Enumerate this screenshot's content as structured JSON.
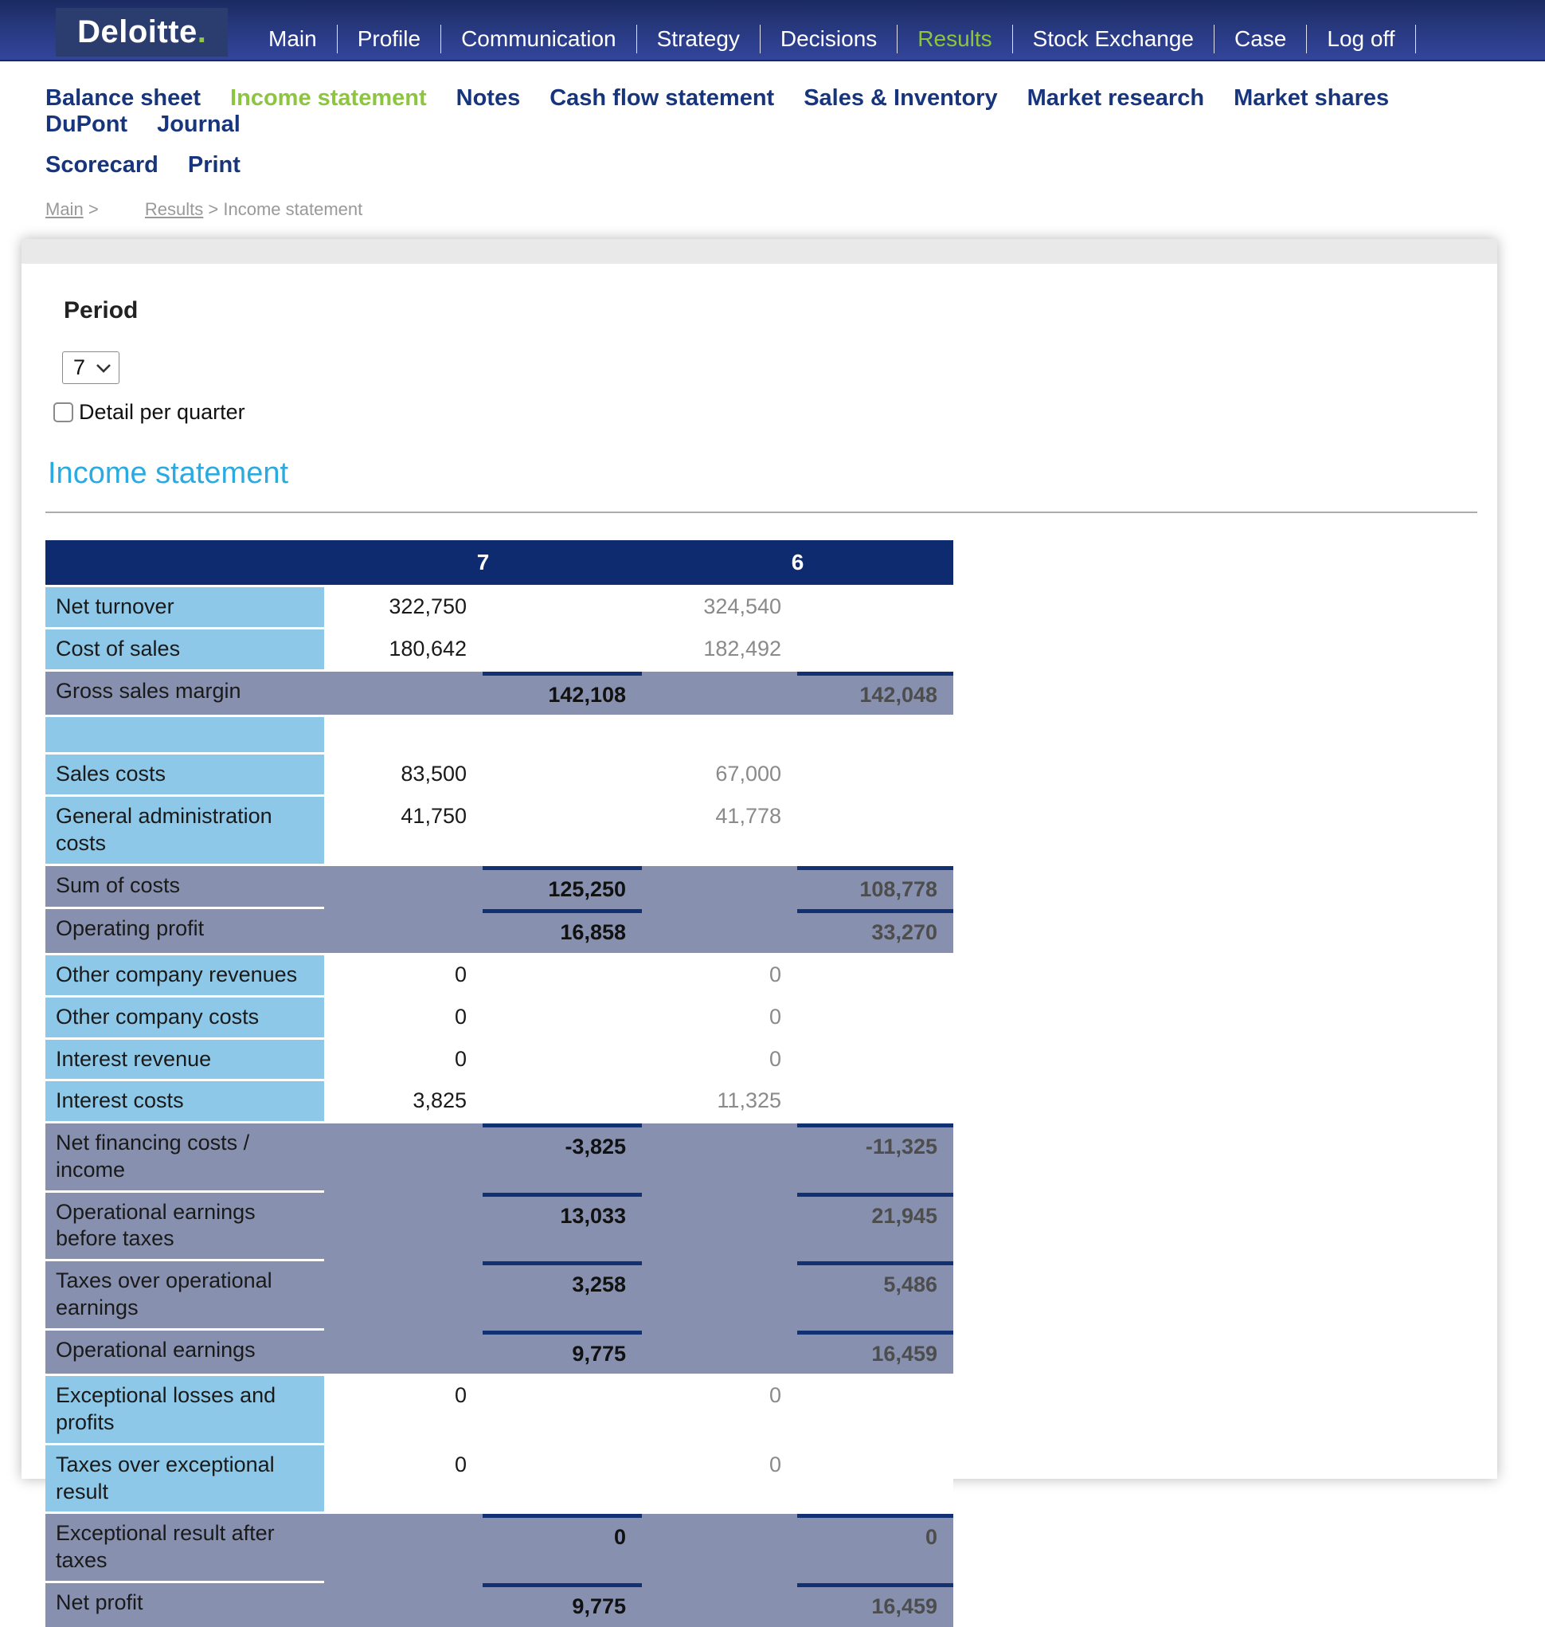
{
  "topnav": {
    "logo_text": "Deloitte",
    "logo_dot": ".",
    "items": [
      {
        "label": "Main",
        "active": false
      },
      {
        "label": "Profile",
        "active": false
      },
      {
        "label": "Communication",
        "active": false
      },
      {
        "label": "Strategy",
        "active": false
      },
      {
        "label": "Decisions",
        "active": false
      },
      {
        "label": "Results",
        "active": true
      },
      {
        "label": "Stock Exchange",
        "active": false
      },
      {
        "label": "Case",
        "active": false
      },
      {
        "label": "Log off",
        "active": false
      }
    ]
  },
  "subnav": {
    "row1": [
      {
        "label": "Balance sheet",
        "active": false
      },
      {
        "label": "Income statement",
        "active": true
      },
      {
        "label": "Notes",
        "active": false
      },
      {
        "label": "Cash flow statement",
        "active": false
      },
      {
        "label": "Sales & Inventory",
        "active": false
      },
      {
        "label": "Market research",
        "active": false
      },
      {
        "label": "Market shares",
        "active": false
      },
      {
        "label": "DuPont",
        "active": false
      },
      {
        "label": "Journal",
        "active": false
      }
    ],
    "row2": [
      {
        "label": "Scorecard",
        "active": false
      },
      {
        "label": "Print",
        "active": false
      }
    ]
  },
  "breadcrumb": {
    "link1": "Main",
    "sep1": ">",
    "link2": "Results",
    "sep2": ">",
    "current": "Income statement"
  },
  "period": {
    "heading": "Period",
    "selected": "7",
    "checkbox_label": "Detail per quarter",
    "checked": false
  },
  "page": {
    "title": "Income statement"
  },
  "table": {
    "columns": [
      "7",
      "6"
    ],
    "rows": [
      {
        "type": "detail",
        "label": "Net turnover",
        "v7": "322,750",
        "v6": "324,540",
        "tall": false,
        "label_sep": false
      },
      {
        "type": "detail",
        "label": "Cost of sales",
        "v7": "180,642",
        "v6": "182,492",
        "tall": false,
        "label_sep": false
      },
      {
        "type": "subtotal",
        "label": "Gross sales margin",
        "v7": "142,108",
        "v6": "142,048",
        "tall": false,
        "label_sep": false
      },
      {
        "type": "blank",
        "label": "",
        "v7": "",
        "v6": "",
        "tall": false,
        "label_sep": false
      },
      {
        "type": "detail",
        "label": "Sales costs",
        "v7": "83,500",
        "v6": "67,000",
        "tall": false,
        "label_sep": false
      },
      {
        "type": "detail",
        "label": "General administration costs",
        "v7": "41,750",
        "v6": "41,778",
        "tall": true,
        "label_sep": false
      },
      {
        "type": "subtotal",
        "label": "Sum of costs",
        "v7": "125,250",
        "v6": "108,778",
        "tall": false,
        "label_sep": true
      },
      {
        "type": "subtotal",
        "label": "Operating profit",
        "v7": "16,858",
        "v6": "33,270",
        "tall": false,
        "label_sep": false
      },
      {
        "type": "detail",
        "label": "Other company revenues",
        "v7": "0",
        "v6": "0",
        "tall": false,
        "label_sep": false
      },
      {
        "type": "detail",
        "label": "Other company costs",
        "v7": "0",
        "v6": "0",
        "tall": false,
        "label_sep": false
      },
      {
        "type": "detail",
        "label": "Interest revenue",
        "v7": "0",
        "v6": "0",
        "tall": false,
        "label_sep": false
      },
      {
        "type": "detail",
        "label": "Interest costs",
        "v7": "3,825",
        "v6": "11,325",
        "tall": false,
        "label_sep": false
      },
      {
        "type": "subtotal",
        "label": "Net financing costs / income",
        "v7": "-3,825",
        "v6": "-11,325",
        "tall": false,
        "label_sep": true
      },
      {
        "type": "subtotal",
        "label": "Operational earnings before taxes",
        "v7": "13,033",
        "v6": "21,945",
        "tall": true,
        "label_sep": true
      },
      {
        "type": "subtotal",
        "label": "Taxes over operational earnings",
        "v7": "3,258",
        "v6": "5,486",
        "tall": true,
        "label_sep": true
      },
      {
        "type": "subtotal",
        "label": "Operational earnings",
        "v7": "9,775",
        "v6": "16,459",
        "tall": false,
        "label_sep": false
      },
      {
        "type": "detail",
        "label": "Exceptional losses and profits",
        "v7": "0",
        "v6": "0",
        "tall": true,
        "label_sep": false
      },
      {
        "type": "detail",
        "label": "Taxes over exceptional result",
        "v7": "0",
        "v6": "0",
        "tall": true,
        "label_sep": false
      },
      {
        "type": "subtotal",
        "label": "Exceptional result after taxes",
        "v7": "0",
        "v6": "0",
        "tall": true,
        "label_sep": true
      },
      {
        "type": "subtotal",
        "label": "Net profit",
        "v7": "9,775",
        "v6": "16,459",
        "tall": false,
        "label_sep": false
      }
    ]
  },
  "colors": {
    "nav_gradient_top": "#1b2a61",
    "nav_gradient_bottom": "#32459a",
    "accent_green": "#8cc63e",
    "logo_green": "#92c83e",
    "subnav_navy": "#17357c",
    "heading_blue": "#29abe2",
    "table_header_navy": "#0d2b6e",
    "sum_line_navy": "#123173",
    "label_light_blue": "#8dc8e8",
    "subtotal_gray_blue": "#8791af",
    "breadcrumb_gray": "#999999"
  }
}
